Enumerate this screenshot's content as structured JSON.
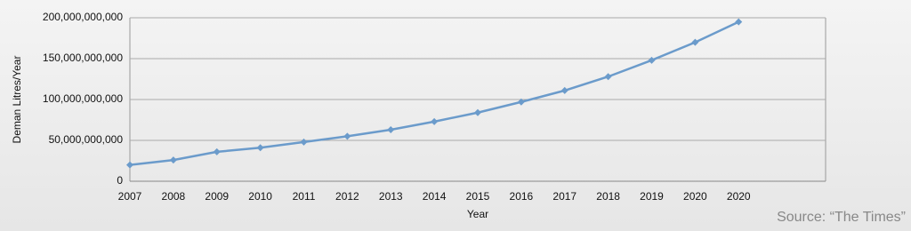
{
  "chart_data": {
    "type": "line",
    "categories": [
      "2007",
      "2008",
      "2009",
      "2010",
      "2011",
      "2012",
      "2013",
      "2014",
      "2015",
      "2016",
      "2017",
      "2018",
      "2019",
      "2020",
      "2020",
      null,
      null
    ],
    "series": [
      {
        "name": null,
        "color": "#6b9bcb",
        "values": [
          20000000000,
          26000000000,
          36000000000,
          41000000000,
          48000000000,
          55000000000,
          63000000000,
          73000000000,
          84000000000,
          97000000000,
          111000000000,
          128000000000,
          148000000000,
          170000000000,
          195000000000,
          null,
          null
        ]
      }
    ],
    "ylim": [
      0,
      200000000000
    ],
    "yticks": [
      0,
      {
        "value": 50000000000,
        "label": "50,000,000,000"
      },
      {
        "value": 100000000000,
        "label": "100,000,000,000"
      },
      {
        "value": 150000000000,
        "label": "150,000,000,000"
      },
      {
        "value": 200000000000,
        "label": "200,000,000,000"
      }
    ],
    "grid": true,
    "x_label": "Year",
    "y_label": "Deman Litres/Year",
    "source": "Source: “The Times”"
  }
}
